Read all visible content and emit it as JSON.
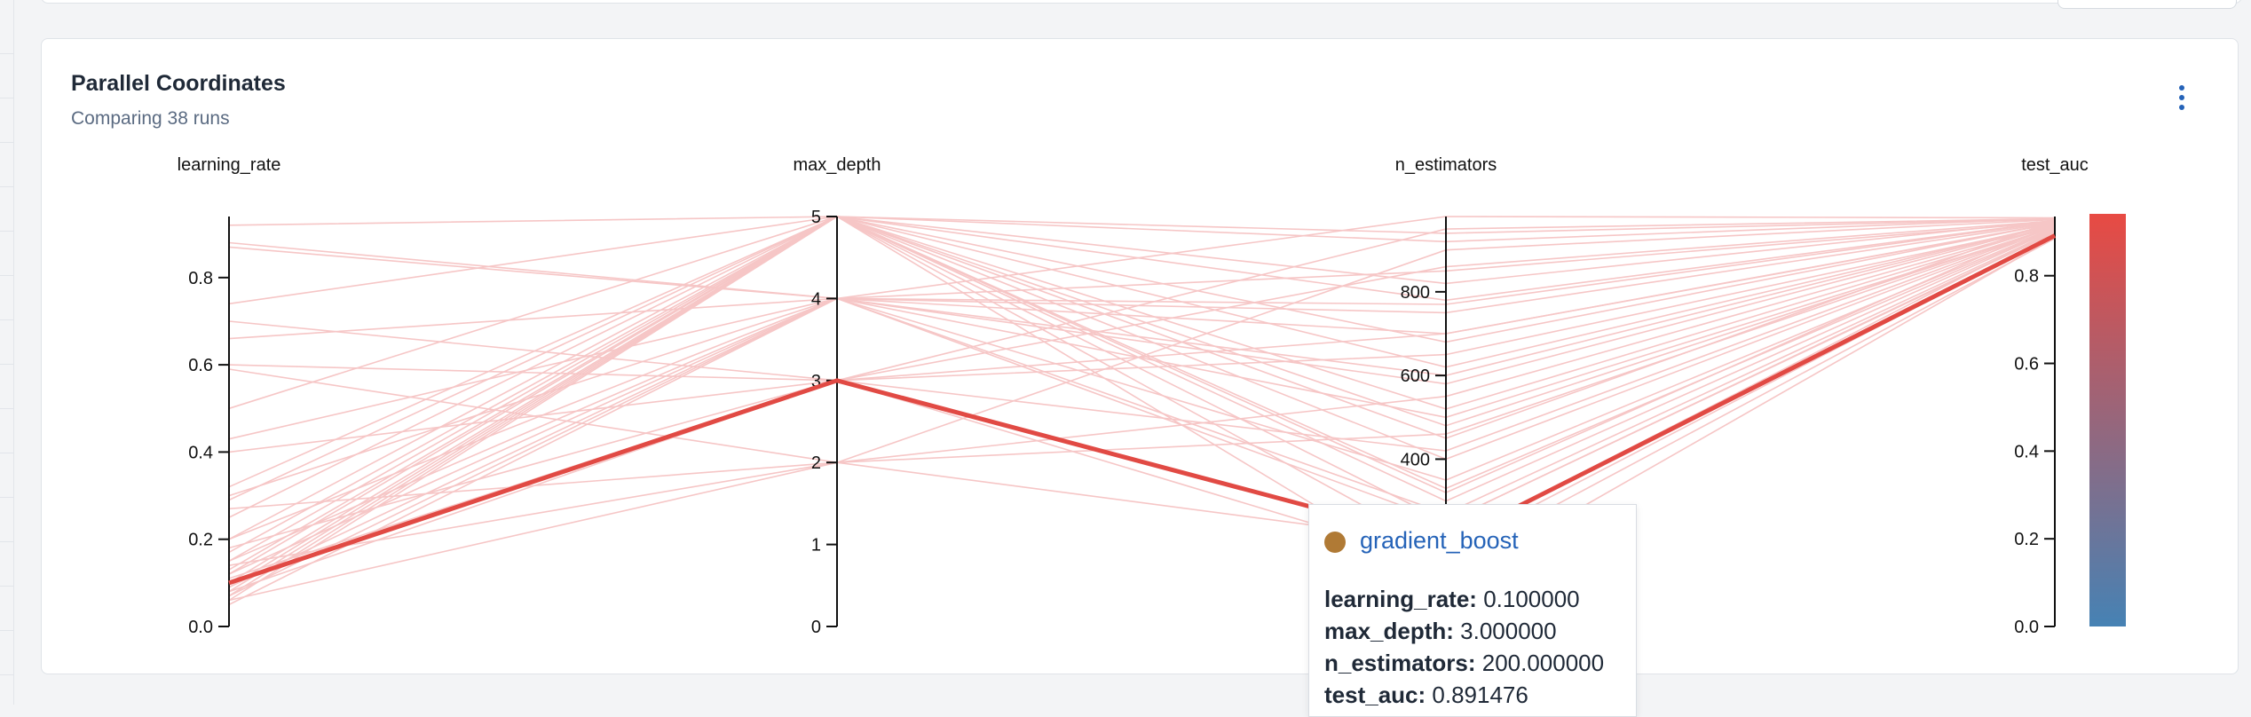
{
  "card": {
    "title": "Parallel Coordinates",
    "subtitle": "Comparing 38 runs"
  },
  "colors": {
    "highlight": "#e14a44",
    "background_lines": "#f6c6c6",
    "colorbar_top": "#e84a43",
    "colorbar_bottom": "#4682b4",
    "link": "#2563b8",
    "tooltip_dot": "#b07a35"
  },
  "chart_data": {
    "type": "parallel_coordinates",
    "axes": [
      {
        "name": "learning_rate",
        "range": [
          0,
          0.94
        ],
        "ticks": [
          0.0,
          0.2,
          0.4,
          0.6,
          0.8
        ],
        "tick_labels": [
          "0.0",
          "0.2",
          "0.4",
          "0.6",
          "0.8"
        ]
      },
      {
        "name": "max_depth",
        "range": [
          0,
          5
        ],
        "ticks": [
          0,
          1,
          2,
          3,
          4,
          5
        ],
        "tick_labels": [
          "0",
          "1",
          "2",
          "3",
          "4",
          "5"
        ]
      },
      {
        "name": "n_estimators",
        "range": [
          0,
          980
        ],
        "ticks": [
          400,
          600,
          800
        ],
        "tick_labels": [
          "400",
          "600",
          "800"
        ]
      },
      {
        "name": "test_auc",
        "range": [
          0,
          0.935
        ],
        "ticks": [
          0.0,
          0.2,
          0.4,
          0.6,
          0.8
        ],
        "tick_labels": [
          "0.0",
          "0.2",
          "0.4",
          "0.6",
          "0.8"
        ]
      }
    ],
    "colorbar": {
      "min": 0.0,
      "max": 0.935
    },
    "highlighted_run": {
      "name": "gradient_boost",
      "values": [
        0.1,
        3.0,
        200.0,
        0.891476
      ]
    },
    "runs": [
      [
        0.1,
        3,
        200,
        0.891476
      ],
      [
        0.92,
        5,
        450,
        0.925
      ],
      [
        0.88,
        4,
        700,
        0.92
      ],
      [
        0.87,
        4,
        850,
        0.922
      ],
      [
        0.74,
        5,
        320,
        0.918
      ],
      [
        0.7,
        3,
        650,
        0.915
      ],
      [
        0.66,
        4,
        500,
        0.91
      ],
      [
        0.6,
        3,
        950,
        0.93
      ],
      [
        0.59,
        2,
        200,
        0.905
      ],
      [
        0.5,
        5,
        780,
        0.924
      ],
      [
        0.43,
        4,
        250,
        0.9
      ],
      [
        0.4,
        3,
        420,
        0.912
      ],
      [
        0.32,
        5,
        100,
        0.888
      ],
      [
        0.3,
        4,
        600,
        0.918
      ],
      [
        0.29,
        5,
        300,
        0.905
      ],
      [
        0.27,
        2,
        550,
        0.915
      ],
      [
        0.25,
        5,
        920,
        0.93
      ],
      [
        0.2,
        4,
        750,
        0.921
      ],
      [
        0.2,
        5,
        480,
        0.912
      ],
      [
        0.18,
        3,
        150,
        0.885
      ],
      [
        0.17,
        5,
        680,
        0.92
      ],
      [
        0.15,
        4,
        350,
        0.908
      ],
      [
        0.15,
        5,
        820,
        0.926
      ],
      [
        0.14,
        2,
        900,
        0.928
      ],
      [
        0.13,
        5,
        250,
        0.898
      ],
      [
        0.12,
        4,
        580,
        0.917
      ],
      [
        0.12,
        5,
        400,
        0.909
      ],
      [
        0.11,
        3,
        700,
        0.919
      ],
      [
        0.1,
        5,
        520,
        0.914
      ],
      [
        0.09,
        4,
        980,
        0.932
      ],
      [
        0.09,
        5,
        180,
        0.893
      ],
      [
        0.08,
        3,
        860,
        0.925
      ],
      [
        0.08,
        5,
        620,
        0.918
      ],
      [
        0.07,
        4,
        270,
        0.902
      ],
      [
        0.07,
        5,
        940,
        0.929
      ],
      [
        0.06,
        2,
        460,
        0.911
      ],
      [
        0.06,
        5,
        330,
        0.906
      ],
      [
        0.05,
        4,
        770,
        0.923
      ]
    ]
  },
  "tooltip": {
    "run_name": "gradient_boost",
    "rows": [
      {
        "key": "learning_rate:",
        "value": "0.100000"
      },
      {
        "key": "max_depth:",
        "value": "3.000000"
      },
      {
        "key": "n_estimators:",
        "value": "200.000000"
      },
      {
        "key": "test_auc:",
        "value": "0.891476"
      }
    ]
  }
}
